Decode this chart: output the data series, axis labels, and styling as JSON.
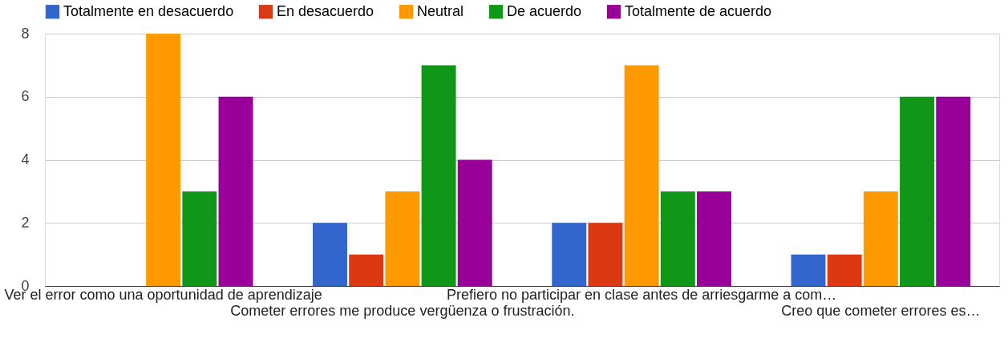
{
  "chart_data": {
    "type": "bar",
    "categories": [
      "Ver el error como una oportunidad de aprendizaje",
      "Cometer errores me produce vergüenza o frustración.",
      "Prefiero no participar en clase antes de arriesgarme a com…",
      "Creo que cometer errores es…"
    ],
    "series": [
      {
        "name": "Totalmente en desacuerdo",
        "color": "#3366cc",
        "values": [
          0,
          2,
          2,
          1
        ]
      },
      {
        "name": "En desacuerdo",
        "color": "#dc3912",
        "values": [
          0,
          1,
          2,
          1
        ]
      },
      {
        "name": "Neutral",
        "color": "#ff9900",
        "values": [
          8,
          3,
          7,
          3
        ]
      },
      {
        "name": "De acuerdo",
        "color": "#109618",
        "values": [
          3,
          7,
          3,
          6
        ]
      },
      {
        "name": "Totalmente de acuerdo",
        "color": "#990099",
        "values": [
          6,
          4,
          3,
          6
        ]
      }
    ],
    "ylim": [
      0,
      8
    ],
    "yticks": [
      0,
      2,
      4,
      6,
      8
    ],
    "grid": "y",
    "legend": "top"
  }
}
